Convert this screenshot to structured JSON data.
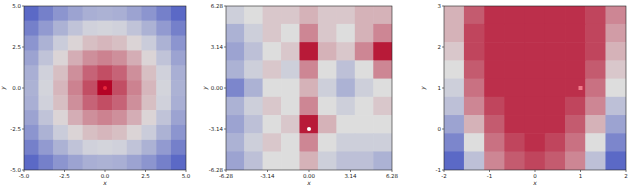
{
  "chart_data": [
    {
      "type": "heatmap",
      "xlabel": "x",
      "ylabel": "y",
      "xlim": [
        -5,
        5
      ],
      "ylim": [
        -5,
        5
      ],
      "xticks": [
        {
          "value": -5,
          "label": "-5.0"
        },
        {
          "value": -2.5,
          "label": "-2.5"
        },
        {
          "value": 0,
          "label": "0.0"
        },
        {
          "value": 2.5,
          "label": "2.5"
        },
        {
          "value": 5,
          "label": "5.0"
        }
      ],
      "yticks": [
        {
          "value": -5,
          "label": "-5.0"
        },
        {
          "value": -2.5,
          "label": "-2.5"
        },
        {
          "value": 0,
          "label": "0.0"
        },
        {
          "value": 2.5,
          "label": "2.5"
        },
        {
          "value": 5,
          "label": "5.0"
        }
      ],
      "cells": [
        [
          0.1,
          0.18,
          0.25,
          0.3,
          0.34,
          0.35,
          0.34,
          0.3,
          0.25,
          0.18,
          0.1
        ],
        [
          0.18,
          0.27,
          0.35,
          0.41,
          0.46,
          0.47,
          0.46,
          0.41,
          0.35,
          0.27,
          0.18
        ],
        [
          0.25,
          0.35,
          0.44,
          0.52,
          0.57,
          0.59,
          0.57,
          0.52,
          0.44,
          0.35,
          0.25
        ],
        [
          0.3,
          0.41,
          0.52,
          0.61,
          0.68,
          0.71,
          0.68,
          0.61,
          0.52,
          0.41,
          0.3
        ],
        [
          0.34,
          0.46,
          0.57,
          0.68,
          0.78,
          0.83,
          0.78,
          0.68,
          0.57,
          0.46,
          0.34
        ],
        [
          0.35,
          0.47,
          0.59,
          0.71,
          0.83,
          1.0,
          0.83,
          0.71,
          0.59,
          0.47,
          0.35
        ],
        [
          0.34,
          0.46,
          0.57,
          0.68,
          0.78,
          0.83,
          0.78,
          0.68,
          0.57,
          0.46,
          0.34
        ],
        [
          0.3,
          0.41,
          0.52,
          0.61,
          0.68,
          0.71,
          0.68,
          0.61,
          0.52,
          0.41,
          0.3
        ],
        [
          0.25,
          0.35,
          0.44,
          0.52,
          0.57,
          0.59,
          0.57,
          0.52,
          0.44,
          0.35,
          0.25
        ],
        [
          0.18,
          0.27,
          0.35,
          0.41,
          0.46,
          0.47,
          0.46,
          0.41,
          0.35,
          0.27,
          0.18
        ],
        [
          0.1,
          0.18,
          0.25,
          0.3,
          0.34,
          0.35,
          0.34,
          0.3,
          0.25,
          0.18,
          0.1
        ]
      ],
      "x": [
        0
      ],
      "y": [
        0
      ],
      "marker": "o",
      "color": "#e8283c"
    },
    {
      "type": "heatmap",
      "xlabel": "x",
      "ylabel": "y",
      "xlim": [
        -6.28,
        6.28
      ],
      "ylim": [
        -6.28,
        6.28
      ],
      "xticks": [
        {
          "value": -6.28,
          "label": "-6.28"
        },
        {
          "value": -3.14,
          "label": "-3.14"
        },
        {
          "value": 0,
          "label": "0.00"
        },
        {
          "value": 3.14,
          "label": "3.14"
        },
        {
          "value": 6.28,
          "label": "6.28"
        }
      ],
      "yticks": [
        {
          "value": -6.28,
          "label": "-6.28"
        },
        {
          "value": -3.14,
          "label": "-3.14"
        },
        {
          "value": 0,
          "label": "0.00"
        },
        {
          "value": 3.14,
          "label": "3.14"
        },
        {
          "value": 6.28,
          "label": "6.28"
        }
      ],
      "cells": [
        [
          0.45,
          0.5,
          0.55,
          0.55,
          0.6,
          0.55,
          0.55,
          0.6,
          0.6
        ],
        [
          0.35,
          0.45,
          0.55,
          0.5,
          0.7,
          0.55,
          0.5,
          0.6,
          0.7
        ],
        [
          0.3,
          0.4,
          0.5,
          0.55,
          0.95,
          0.6,
          0.55,
          0.7,
          0.95
        ],
        [
          0.35,
          0.45,
          0.55,
          0.45,
          0.7,
          0.5,
          0.4,
          0.5,
          0.7
        ],
        [
          0.2,
          0.35,
          0.5,
          0.5,
          0.6,
          0.45,
          0.35,
          0.45,
          0.5
        ],
        [
          0.35,
          0.45,
          0.55,
          0.5,
          0.7,
          0.5,
          0.45,
          0.5,
          0.55
        ],
        [
          0.3,
          0.4,
          0.5,
          0.55,
          0.95,
          0.6,
          0.5,
          0.5,
          0.5
        ],
        [
          0.35,
          0.45,
          0.55,
          0.5,
          0.7,
          0.5,
          0.45,
          0.45,
          0.45
        ],
        [
          0.3,
          0.4,
          0.5,
          0.5,
          0.6,
          0.45,
          0.4,
          0.4,
          0.35
        ]
      ],
      "x": [
        0
      ],
      "y": [
        -3.14
      ],
      "marker": "o",
      "color": "#ffffff"
    },
    {
      "type": "heatmap",
      "xlabel": "x",
      "ylabel": "y",
      "xlim": [
        -2,
        2
      ],
      "ylim": [
        -1,
        3
      ],
      "xticks": [
        -2,
        -1,
        0,
        1,
        2
      ],
      "yticks": [
        -1,
        0,
        1,
        2,
        3
      ],
      "cells": [
        [
          0.6,
          0.8,
          0.9,
          0.9,
          0.9,
          0.9,
          0.9,
          0.85,
          0.7
        ],
        [
          0.6,
          0.85,
          0.9,
          0.9,
          0.9,
          0.9,
          0.9,
          0.85,
          0.65
        ],
        [
          0.55,
          0.85,
          0.9,
          0.9,
          0.9,
          0.9,
          0.9,
          0.85,
          0.6
        ],
        [
          0.5,
          0.8,
          0.9,
          0.9,
          0.9,
          0.9,
          0.9,
          0.8,
          0.55
        ],
        [
          0.45,
          0.75,
          0.9,
          0.9,
          0.9,
          0.9,
          0.9,
          0.75,
          0.5
        ],
        [
          0.4,
          0.7,
          0.85,
          0.9,
          0.9,
          0.9,
          0.85,
          0.7,
          0.4
        ],
        [
          0.3,
          0.6,
          0.8,
          0.9,
          0.9,
          0.9,
          0.8,
          0.6,
          0.3
        ],
        [
          0.2,
          0.5,
          0.75,
          0.85,
          0.9,
          0.85,
          0.75,
          0.5,
          0.2
        ],
        [
          0.1,
          0.4,
          0.7,
          0.8,
          0.85,
          0.8,
          0.7,
          0.4,
          0.1
        ]
      ],
      "x": [
        1
      ],
      "y": [
        1
      ],
      "marker": "s",
      "color": "#f07a8a"
    }
  ]
}
